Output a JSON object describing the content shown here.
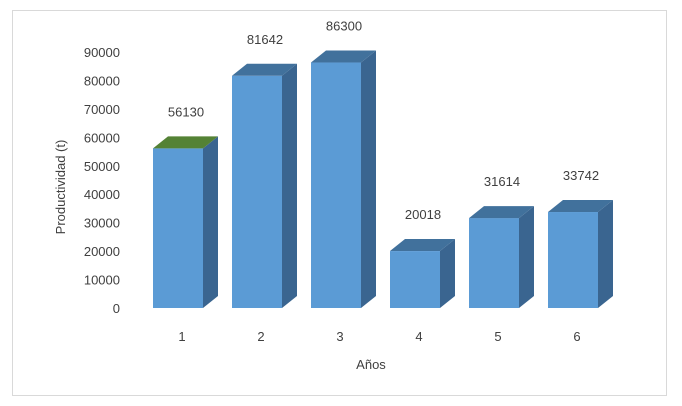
{
  "chart_data": {
    "type": "bar",
    "style": "3d-column",
    "categories": [
      "1",
      "2",
      "3",
      "4",
      "5",
      "6"
    ],
    "values": [
      56130,
      81642,
      86300,
      20018,
      31614,
      33742
    ],
    "data_labels": [
      "56130",
      "81642",
      "86300",
      "20018",
      "31614",
      "33742"
    ],
    "title": "",
    "xlabel": "Años",
    "ylabel": "Productividad (t)",
    "ylim": [
      0,
      90000
    ],
    "yticks": [
      "0",
      "10000",
      "20000",
      "30000",
      "40000",
      "50000",
      "60000",
      "70000",
      "80000",
      "90000"
    ],
    "grid": false,
    "legend": "none",
    "colors": {
      "front": "#5b9bd5",
      "side": "#3a6590",
      "top": "#41719c",
      "top_highlight": "#548235"
    }
  }
}
